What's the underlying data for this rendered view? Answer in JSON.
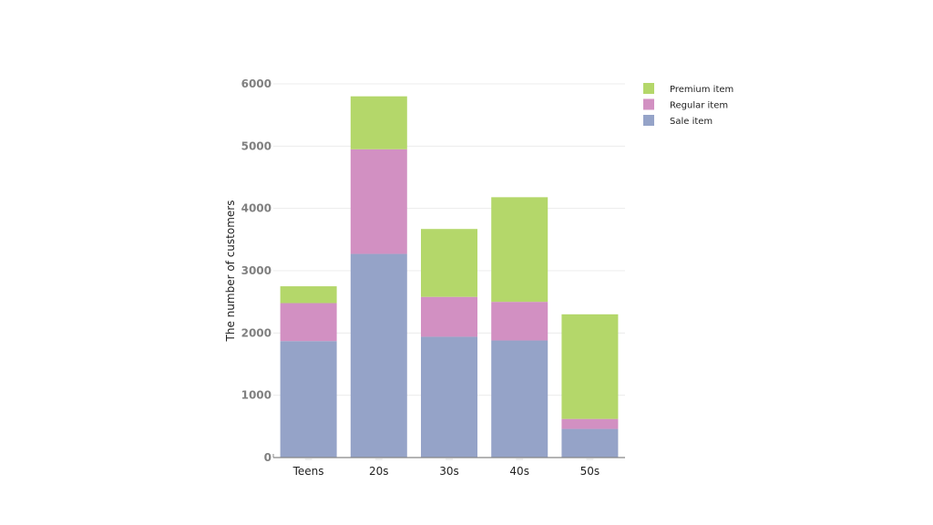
{
  "chart_data": {
    "type": "bar",
    "stacked": true,
    "title": "",
    "xlabel": "",
    "ylabel": "The number of customers",
    "ylim": [
      0,
      6000
    ],
    "yticks": [
      0,
      1000,
      2000,
      3000,
      4000,
      5000,
      6000
    ],
    "ytick_labels": [
      "0",
      "1000",
      "2000",
      "3000",
      "4000",
      "5000",
      "6000"
    ],
    "grid": true,
    "legend_position": "top-right",
    "categories": [
      "Teens",
      "20s",
      "30s",
      "40s",
      "50s"
    ],
    "series": [
      {
        "name": "Sale item",
        "color": "#95a3c8",
        "values": [
          1870,
          3270,
          1940,
          1880,
          460
        ]
      },
      {
        "name": "Regular item",
        "color": "#d290c2",
        "values": [
          610,
          1680,
          640,
          620,
          160
        ]
      },
      {
        "name": "Premium item",
        "color": "#b4d76a",
        "values": [
          270,
          850,
          1090,
          1680,
          1680
        ]
      }
    ],
    "legend_order": [
      "Premium item",
      "Regular item",
      "Sale item"
    ]
  }
}
